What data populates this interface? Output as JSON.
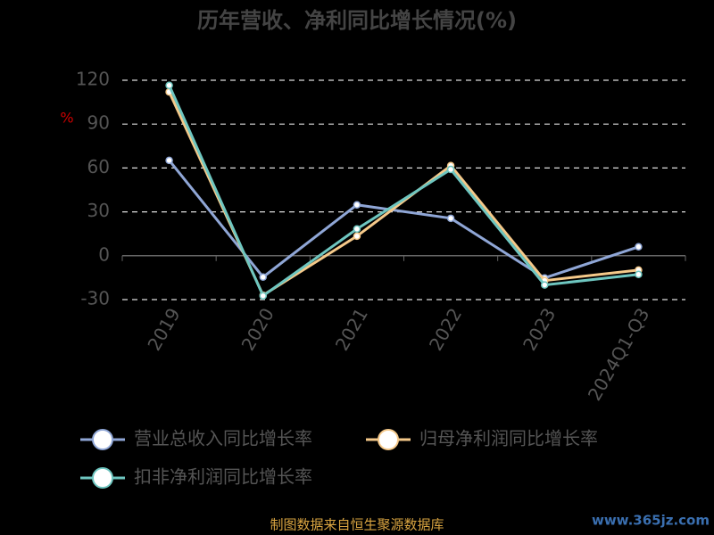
{
  "chart_data": {
    "type": "line",
    "title": "历年营收、净利同比增长情况(%)",
    "y_label": "%",
    "categories": [
      "2019",
      "2020",
      "2021",
      "2022",
      "2023",
      "2024Q1-Q3"
    ],
    "series": [
      {
        "name": "营业总收入同比增长率",
        "color": "#8fa6d6",
        "values": [
          65.2,
          -14.6,
          34.8,
          25.6,
          -15.2,
          6.1
        ]
      },
      {
        "name": "归母净利润同比增长率",
        "color": "#f5c98a",
        "values": [
          112,
          -27,
          13.4,
          61.6,
          -17,
          -9.8
        ]
      },
      {
        "name": "扣非净利润同比增长率",
        "color": "#6ec6c0",
        "values": [
          116.5,
          -27.4,
          18.3,
          59,
          -20,
          -12.8
        ]
      }
    ],
    "ylim": [
      -30,
      120
    ],
    "yticks": [
      -30,
      0,
      30,
      60,
      90,
      120
    ],
    "grid": true,
    "source": "制图数据来自恒生聚源数据库",
    "watermark": "www.365jz.com"
  }
}
